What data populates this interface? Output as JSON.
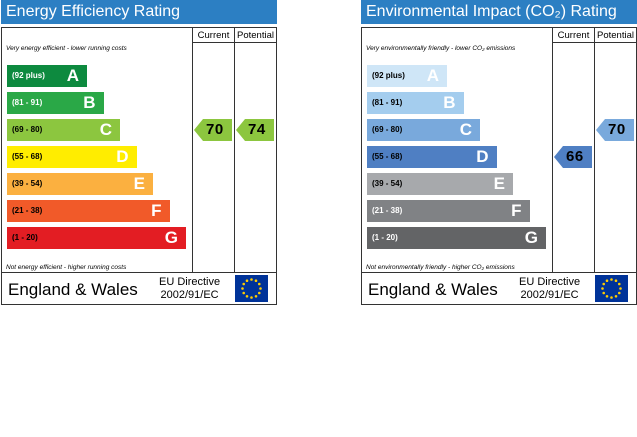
{
  "energy": {
    "title": "Energy Efficiency Rating",
    "col_current": "Current",
    "col_potential": "Potential",
    "top_note": "Very energy efficient - lower running costs",
    "bottom_note": "Not energy efficient - higher running costs",
    "region": "England & Wales",
    "directive_line1": "EU Directive",
    "directive_line2": "2002/91/EC",
    "bands": [
      {
        "range": "(92 plus)",
        "letter": "A",
        "color": "#0d8a3f",
        "text_color": "#ffffff"
      },
      {
        "range": "(81 - 91)",
        "letter": "B",
        "color": "#2aa847",
        "text_color": "#ffffff"
      },
      {
        "range": "(69 - 80)",
        "letter": "C",
        "color": "#8cc63f",
        "text_color": "#000000"
      },
      {
        "range": "(55 - 68)",
        "letter": "D",
        "color": "#ffed00",
        "text_color": "#000000"
      },
      {
        "range": "(39 - 54)",
        "letter": "E",
        "color": "#fbb040",
        "text_color": "#000000"
      },
      {
        "range": "(21 - 38)",
        "letter": "F",
        "color": "#f15a29",
        "text_color": "#000000"
      },
      {
        "range": "(1 - 20)",
        "letter": "G",
        "color": "#e31d23",
        "text_color": "#000000"
      }
    ],
    "current": {
      "value": "70",
      "color": "#8cc63f"
    },
    "potential": {
      "value": "74",
      "color": "#8cc63f"
    }
  },
  "environment": {
    "title": "Environmental Impact (CO₂) Rating",
    "col_current": "Current",
    "col_potential": "Potential",
    "top_note": "Very environmentally friendly - lower CO₂ emissions",
    "bottom_note": "Not environmentally friendly - higher CO₂ emissions",
    "region": "England & Wales",
    "directive_line1": "EU Directive",
    "directive_line2": "2002/91/EC",
    "bands": [
      {
        "range": "(92 plus)",
        "letter": "A",
        "color": "#cfe6f7",
        "text_color": "#000000"
      },
      {
        "range": "(81 - 91)",
        "letter": "B",
        "color": "#a4cdee",
        "text_color": "#000000"
      },
      {
        "range": "(69 - 80)",
        "letter": "C",
        "color": "#79a9dc",
        "text_color": "#000000"
      },
      {
        "range": "(55 - 68)",
        "letter": "D",
        "color": "#4f7fc3",
        "text_color": "#000000"
      },
      {
        "range": "(39 - 54)",
        "letter": "E",
        "color": "#a7a9ac",
        "text_color": "#000000"
      },
      {
        "range": "(21 - 38)",
        "letter": "F",
        "color": "#808285",
        "text_color": "#ffffff"
      },
      {
        "range": "(1 - 20)",
        "letter": "G",
        "color": "#636466",
        "text_color": "#ffffff"
      }
    ],
    "current": {
      "value": "66",
      "color": "#4f7fc3"
    },
    "potential": {
      "value": "70",
      "color": "#79a9dc"
    }
  },
  "chart_data": [
    {
      "type": "bar",
      "title": "Energy Efficiency Rating",
      "categories": [
        "A (92 plus)",
        "B (81 - 91)",
        "C (69 - 80)",
        "D (55 - 68)",
        "E (39 - 54)",
        "F (21 - 38)",
        "G (1 - 20)"
      ],
      "current_rating": 70,
      "potential_rating": 74
    },
    {
      "type": "bar",
      "title": "Environmental Impact (CO₂) Rating",
      "categories": [
        "A (92 plus)",
        "B (81 - 91)",
        "C (69 - 80)",
        "D (55 - 68)",
        "E (39 - 54)",
        "F (21 - 38)",
        "G (1 - 20)"
      ],
      "current_rating": 66,
      "potential_rating": 70
    }
  ]
}
